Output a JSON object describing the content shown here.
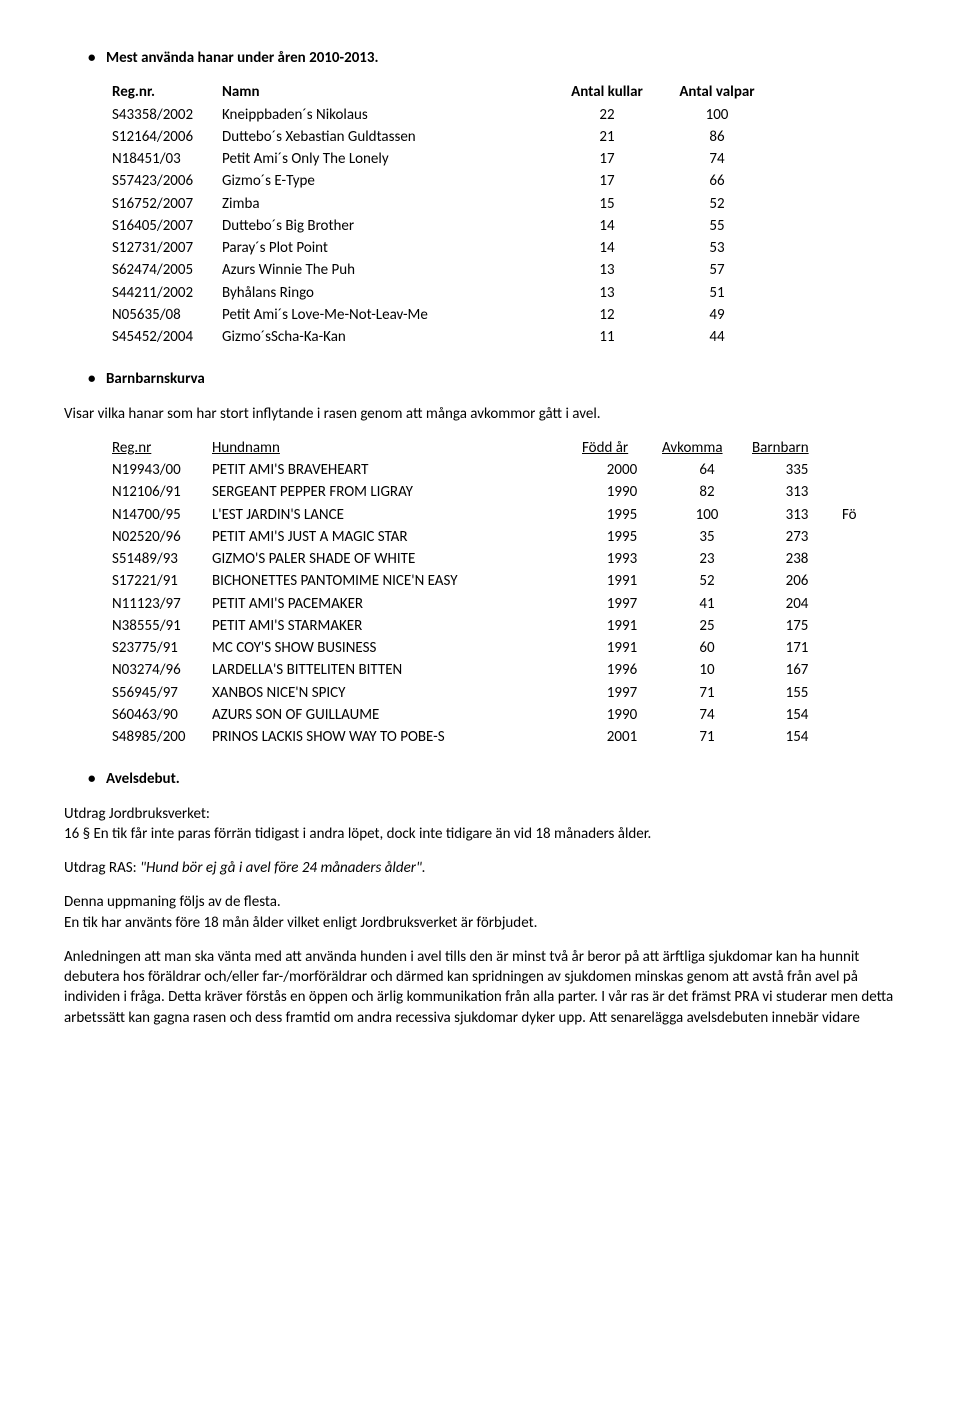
{
  "section1": {
    "heading": "Mest använda hanar under åren 2010-2013.",
    "columns": [
      "Reg.nr.",
      "Namn",
      "Antal kullar",
      "Antal valpar"
    ],
    "rows": [
      [
        "S43358/2002",
        "Kneippbaden´s Nikolaus",
        "22",
        "100"
      ],
      [
        "S12164/2006",
        "Duttebo´s Xebastian Guldtassen",
        "21",
        "86"
      ],
      [
        "N18451/03",
        "Petit Ami´s Only The Lonely",
        "17",
        "74"
      ],
      [
        "S57423/2006",
        "Gizmo´s E-Type",
        "17",
        "66"
      ],
      [
        "S16752/2007",
        "Zimba",
        "15",
        "52"
      ],
      [
        "S16405/2007",
        "Duttebo´s Big Brother",
        "14",
        "55"
      ],
      [
        "S12731/2007",
        "Paray´s Plot Point",
        "14",
        "53"
      ],
      [
        "S62474/2005",
        "Azurs Winnie The Puh",
        "13",
        "57"
      ],
      [
        "S44211/2002",
        "Byhålans Ringo",
        "13",
        "51"
      ],
      [
        "N05635/08",
        "Petit Ami´s Love-Me-Not-Leav-Me",
        "12",
        "49"
      ],
      [
        "S45452/2004",
        "Gizmo´sScha-Ka-Kan",
        "11",
        "44"
      ]
    ]
  },
  "section2": {
    "heading": "Barnbarnskurva",
    "intro": "Visar vilka hanar som har stort inflytande i rasen genom att många avkommor gått i avel.",
    "header_labels": {
      "regnr": "Reg.nr",
      "name": "Hundnamn",
      "year": "Född år",
      "offspring": "Avkomma",
      "grandchild": "Barnbarn"
    },
    "rows": [
      [
        "N19943/00",
        "PETIT AMI'S BRAVEHEART",
        "2000",
        "64",
        "335",
        ""
      ],
      [
        "N12106/91",
        "SERGEANT PEPPER FROM LIGRAY",
        "1990",
        "82",
        "313",
        ""
      ],
      [
        "N14700/95",
        "L'EST JARDIN'S LANCE",
        "1995",
        "100",
        "313",
        "Fö"
      ],
      [
        "N02520/96",
        "PETIT AMI'S JUST A MAGIC STAR",
        "1995",
        "35",
        "273",
        ""
      ],
      [
        "S51489/93",
        "GIZMO'S PALER SHADE OF WHITE",
        "1993",
        "23",
        "238",
        ""
      ],
      [
        "S17221/91",
        "BICHONETTES PANTOMIME NICE'N EASY",
        "1991",
        "52",
        "206",
        ""
      ],
      [
        "N11123/97",
        "PETIT AMI'S PACEMAKER",
        "1997",
        "41",
        "204",
        ""
      ],
      [
        "N38555/91",
        "PETIT AMI'S STARMAKER",
        "1991",
        "25",
        "175",
        ""
      ],
      [
        "S23775/91",
        "MC COY'S SHOW BUSINESS",
        "1991",
        "60",
        "171",
        ""
      ],
      [
        "N03274/96",
        "LARDELLA'S BITTELITEN BITTEN",
        "1996",
        "10",
        "167",
        ""
      ],
      [
        "S56945/97",
        "XANBOS NICE'N SPICY",
        "1997",
        "71",
        "155",
        ""
      ],
      [
        "S60463/90",
        "AZURS SON OF GUILLAUME",
        "1990",
        "74",
        "154",
        ""
      ],
      [
        "S48985/200",
        "PRINOS LACKIS SHOW WAY TO POBE-S",
        "2001",
        "71",
        "154",
        ""
      ]
    ]
  },
  "section3": {
    "heading": "Avelsdebut.",
    "p1a": "Utdrag Jordbruksverket:",
    "p1b": "16 § En tik får inte paras förrän tidigast i andra löpet, dock inte tidigare än vid 18 månaders ålder.",
    "p2a": "Utdrag RAS: ",
    "p2b": "\"Hund bör ej gå i avel före 24 månaders ålder\".",
    "p3a": "Denna uppmaning följs av de flesta.",
    "p3b": "En tik har använts före 18 mån ålder vilket enligt Jordbruksverket är förbjudet.",
    "p4": "Anledningen att man ska vänta med att använda hunden i avel tills den är minst två år beror på att ärftliga sjukdomar kan ha hunnit debutera hos föräldrar och/eller far-/morföräldrar och därmed kan spridningen av sjukdomen minskas genom att avstå från avel på individen i fråga. Detta kräver förstås en öppen och ärlig kommunikation från alla parter. I vår ras är det främst PRA vi studerar men detta arbetssätt kan gagna rasen och dess framtid om andra recessiva sjukdomar dyker upp. Att senarelägga avelsdebuten innebär vidare"
  }
}
